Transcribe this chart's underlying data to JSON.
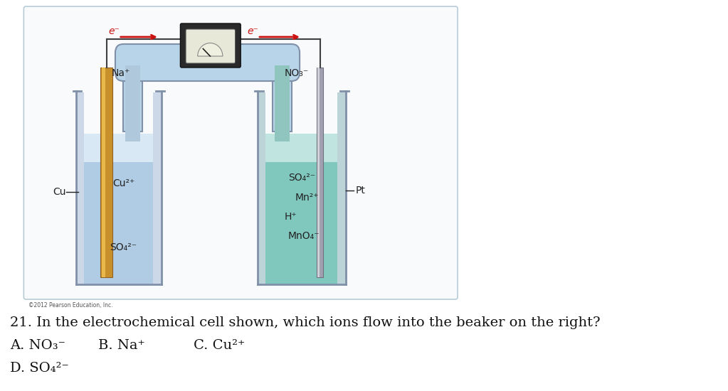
{
  "bg_color": "#ffffff",
  "box_edge_color": "#b8ccd8",
  "box_fill_color": "#f8fafc",
  "copyright": "©2012 Pearson Education, Inc.",
  "question": "21. In the electrochemical cell shown, which ions flow into the beaker on the right?",
  "ans_A": "A. NO₃⁻",
  "ans_B": "B. Na⁺",
  "ans_C": "C. Cu²⁺",
  "ans_D": "D. SO₄²⁻",
  "left_liq_color": "#b0cce4",
  "left_liq_top_color": "#d8e8f4",
  "right_liq_color": "#80c8be",
  "right_liq_top_color": "#c0e4e0",
  "beaker_outline_color": "#8090a8",
  "salt_bridge_color": "#b8d4e8",
  "salt_bridge_outline": "#8090a8",
  "electrode_cu_color": "#c8902a",
  "electrode_cu_highlight": "#e8b84a",
  "electrode_pt_color": "#a0a0b0",
  "electrode_pt_highlight": "#d0d0d8",
  "wire_color": "#404040",
  "device_body_color": "#2a2a2a",
  "device_face_color": "#e8e8d8",
  "arrow_color": "#cc1111",
  "label_cu": "Cu",
  "label_cu2p": "Cu²⁺",
  "label_so4_left": "SO₄²⁻",
  "label_so4_right": "SO₄²⁻",
  "label_mn2p": "Mn²⁺",
  "label_hp": "H⁺",
  "label_mno4": "MnO₄⁻",
  "label_pt": "Pt",
  "label_na": "Na⁺",
  "label_no3": "NO₃⁻",
  "label_e_left": "e⁻",
  "label_e_right": "e⁻"
}
